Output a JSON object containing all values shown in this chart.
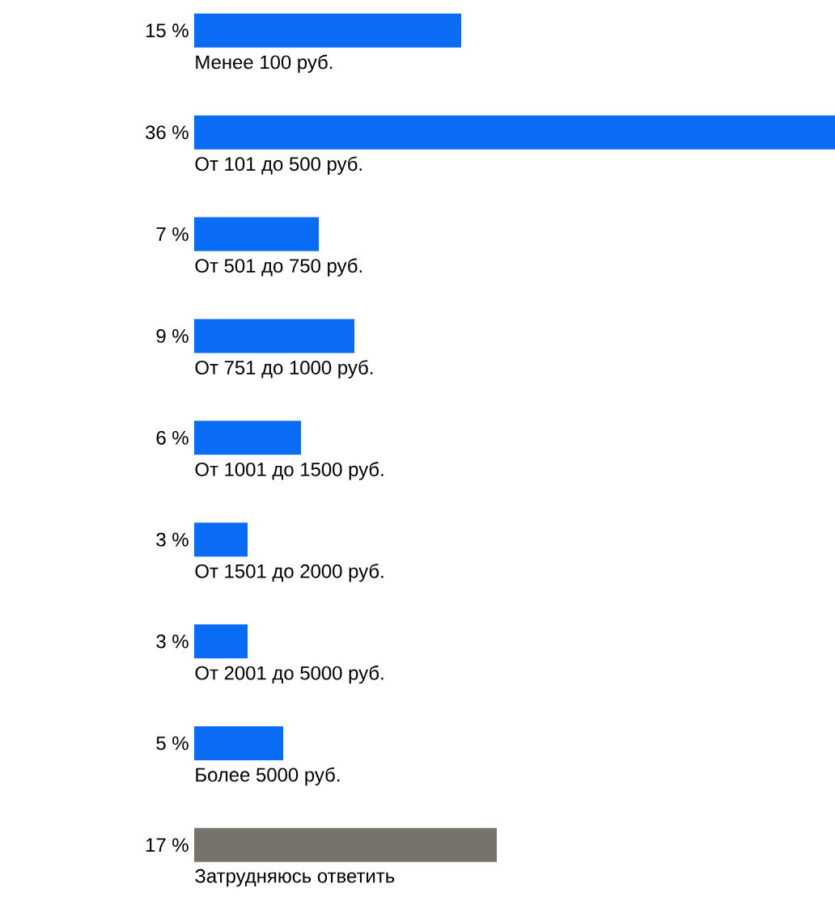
{
  "chart_data": {
    "type": "bar",
    "orientation": "horizontal",
    "categories": [
      "Менее 100 руб.",
      "От 101 до 500 руб.",
      "От 501 до 750 руб.",
      "От 751 до 1000 руб.",
      "От 1001 до 1500 руб.",
      "От 1501 до 2000 руб.",
      "От 2001 до 5000 руб.",
      "Более 5000 руб.",
      "Затрудняюсь ответить"
    ],
    "values": [
      15,
      36,
      7,
      9,
      6,
      3,
      3,
      5,
      17
    ],
    "value_labels": [
      "15 %",
      "36 %",
      "7 %",
      "9 %",
      "6 %",
      "3 %",
      "3 %",
      "5 %",
      "17 %"
    ],
    "colors": [
      "#0a6cf5",
      "#0a6cf5",
      "#0a6cf5",
      "#0a6cf5",
      "#0a6cf5",
      "#0a6cf5",
      "#0a6cf5",
      "#0a6cf5",
      "#75736c"
    ],
    "xlim": [
      0,
      36
    ]
  }
}
